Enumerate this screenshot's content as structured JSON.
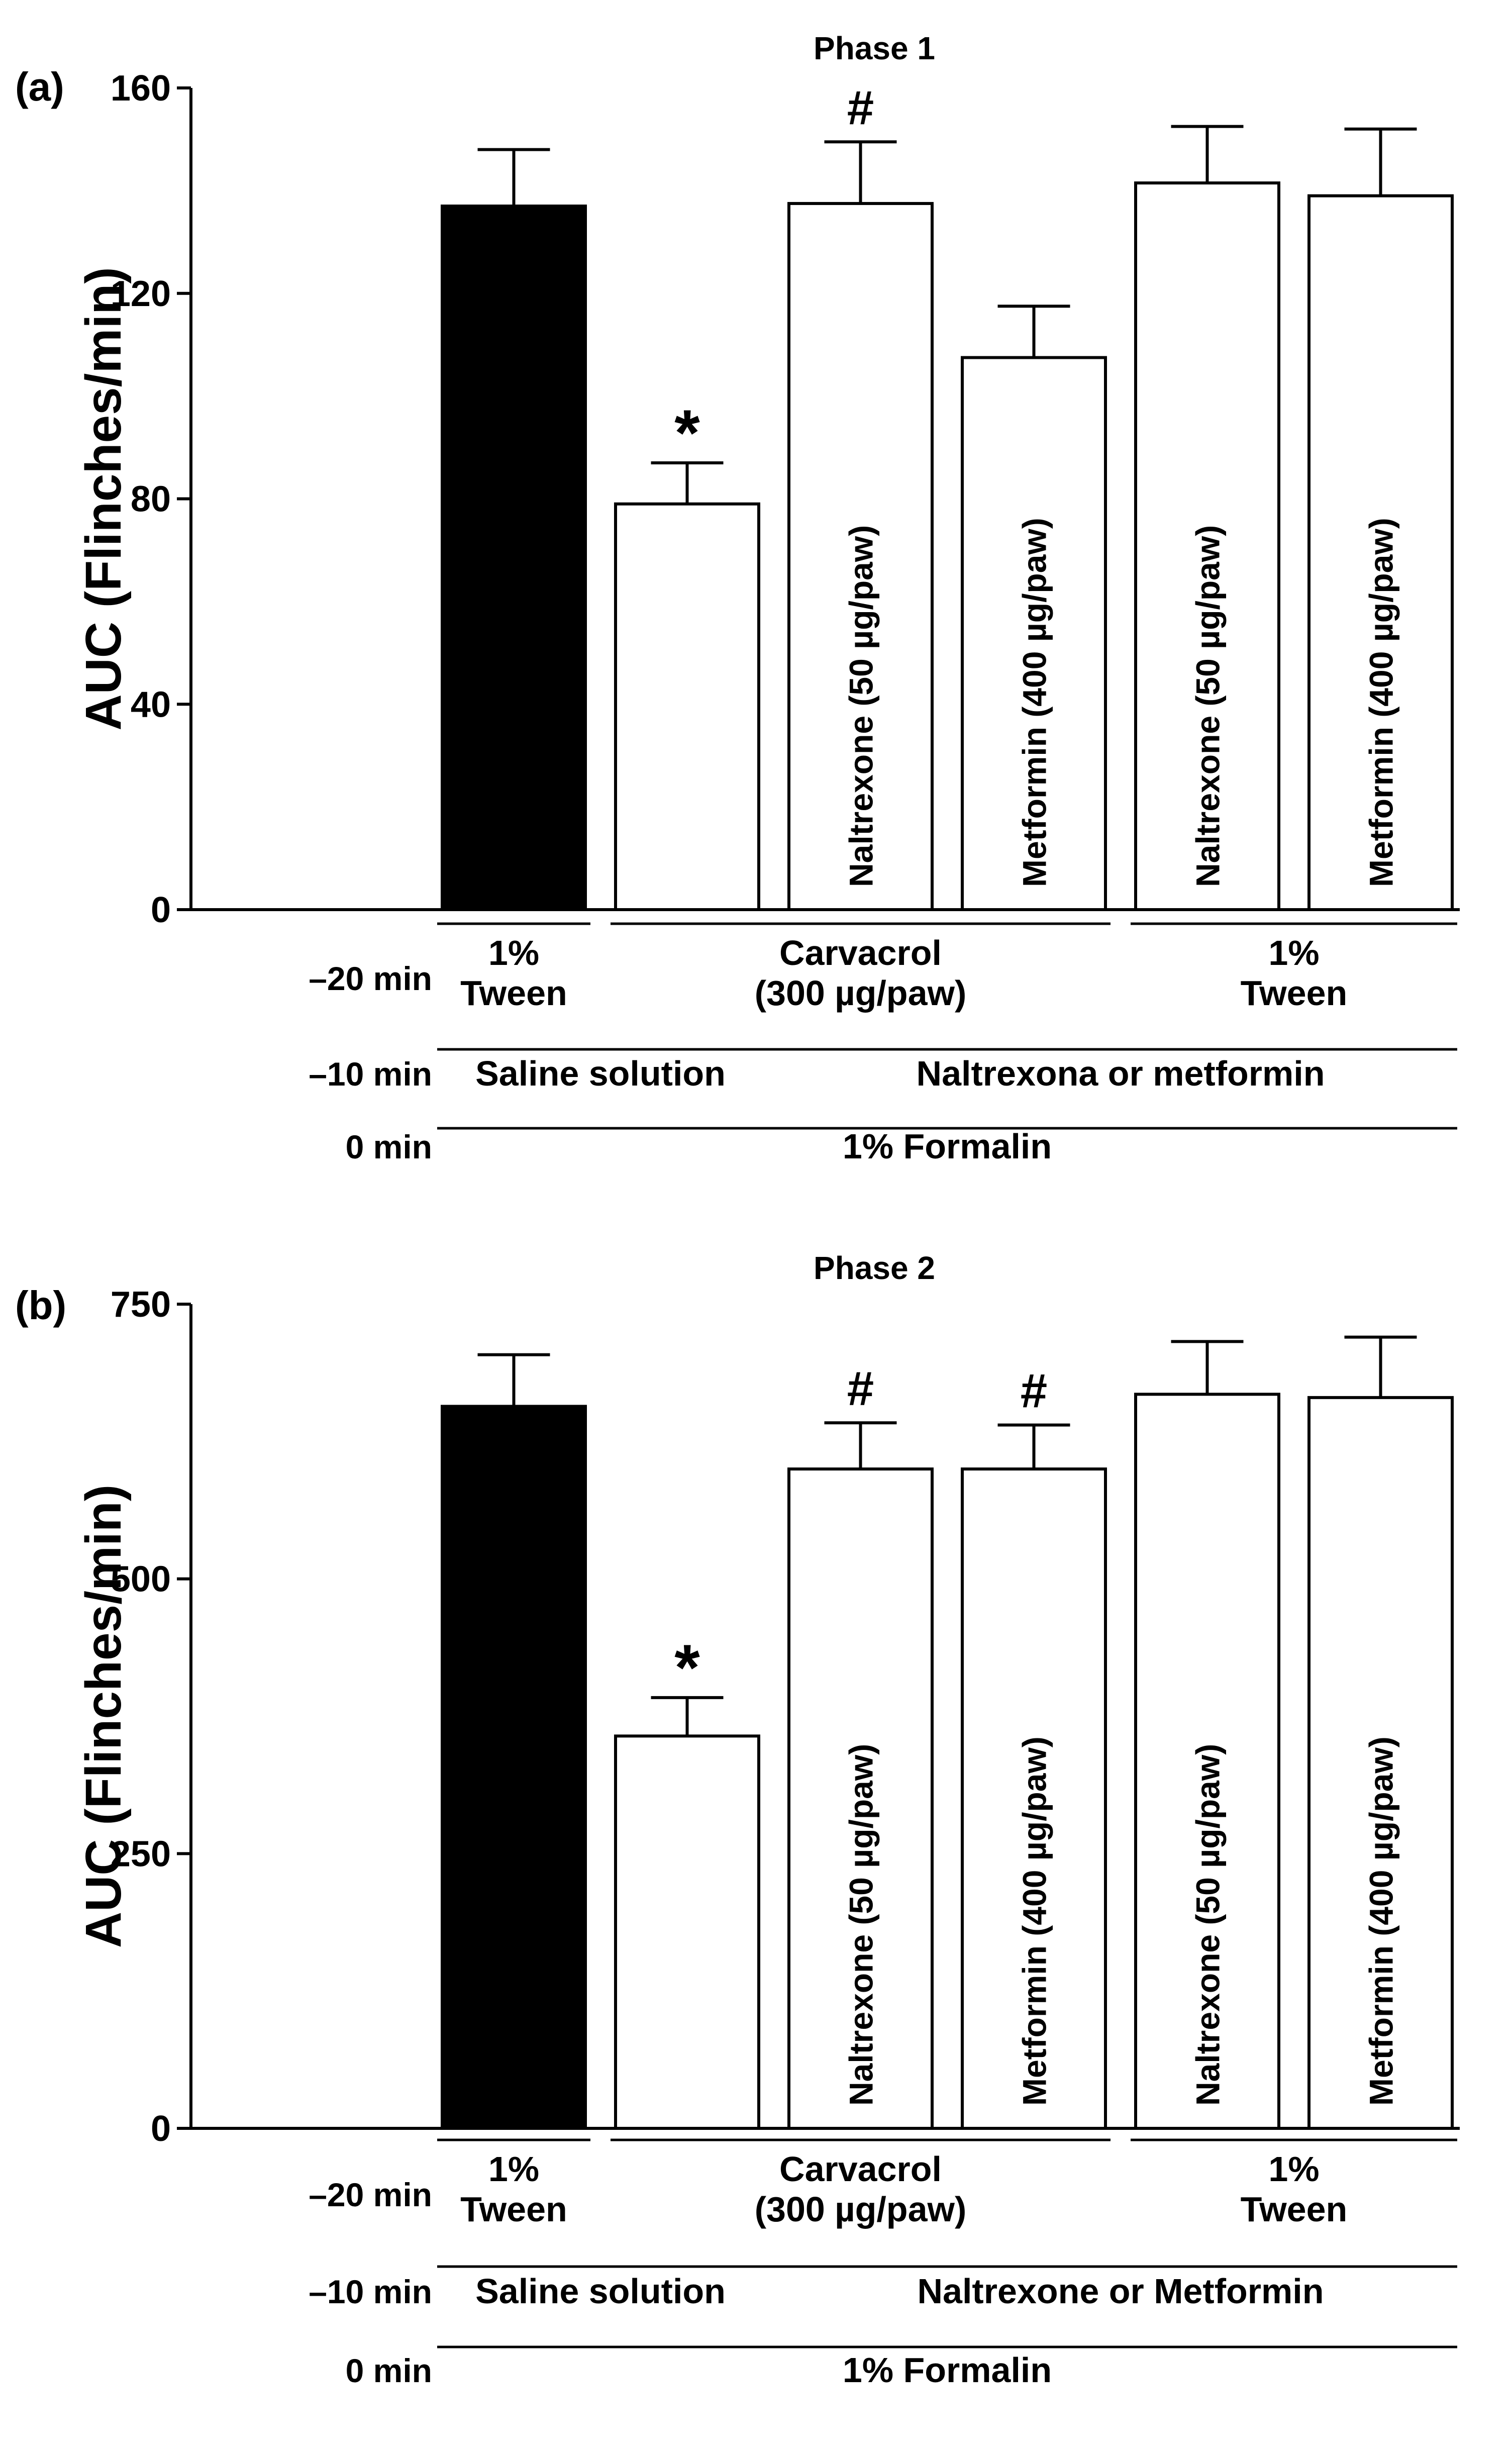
{
  "chart_data": [
    {
      "panel_label": "(a)",
      "type": "bar",
      "title": "Phase 1",
      "ylabel": "AUC (Flinches/min)",
      "ylim": [
        0,
        160
      ],
      "yticks": [
        "0",
        "40",
        "80",
        "120",
        "160"
      ],
      "categories": [
        "",
        "",
        "Naltrexone (50 µg/paw)",
        "Metformin (400 µg/paw)",
        "Naltrexone (50 µg/paw)",
        "Metformin (400 µg/paw)"
      ],
      "values": [
        137,
        79,
        137.5,
        107.5,
        141.5,
        139
      ],
      "errors": [
        11,
        8,
        12,
        10,
        11,
        13
      ],
      "fill": [
        "#000000",
        "#ffffff",
        "#ffffff",
        "#ffffff",
        "#ffffff",
        "#ffffff"
      ],
      "marks": [
        "",
        "*",
        "#",
        "",
        "",
        ""
      ],
      "treatments": {
        "row1_time": "–20 min",
        "row1": [
          {
            "line1": "1%",
            "line2": "Tween"
          },
          {
            "line1": "Carvacrol",
            "line2": "(300 µg/paw)"
          },
          {
            "line1": "1%",
            "line2": "Tween"
          }
        ],
        "row2_time": "–10 min",
        "row2": [
          "Saline solution",
          "Naltrexona or metformin"
        ],
        "row3_time": "0 min",
        "row3": [
          "1% Formalin"
        ]
      }
    },
    {
      "panel_label": "(b)",
      "type": "bar",
      "title": "Phase 2",
      "ylabel": "AUC (Flinches/min)",
      "ylim": [
        0,
        750
      ],
      "yticks": [
        "0",
        "250",
        "500",
        "750"
      ],
      "categories": [
        "",
        "",
        "Naltrexone (50 µg/paw)",
        "Metformin (400 µg/paw)",
        "Naltrexone (50 µg/paw)",
        "Metformin (400 µg/paw)"
      ],
      "values": [
        657,
        357,
        600,
        600,
        668,
        665
      ],
      "errors": [
        47,
        35,
        42,
        40,
        48,
        55
      ],
      "fill": [
        "#000000",
        "#ffffff",
        "#ffffff",
        "#ffffff",
        "#ffffff",
        "#ffffff"
      ],
      "marks": [
        "",
        "*",
        "#",
        "#",
        "",
        ""
      ],
      "treatments": {
        "row1_time": "–20 min",
        "row1": [
          {
            "line1": "1%",
            "line2": "Tween"
          },
          {
            "line1": "Carvacrol",
            "line2": "(300 µg/paw)"
          },
          {
            "line1": "1%",
            "line2": "Tween"
          }
        ],
        "row2_time": "–10 min",
        "row2": [
          "Saline solution",
          "Naltrexone or Metformin"
        ],
        "row3_time": "0 min",
        "row3": [
          "1% Formalin"
        ]
      }
    }
  ]
}
